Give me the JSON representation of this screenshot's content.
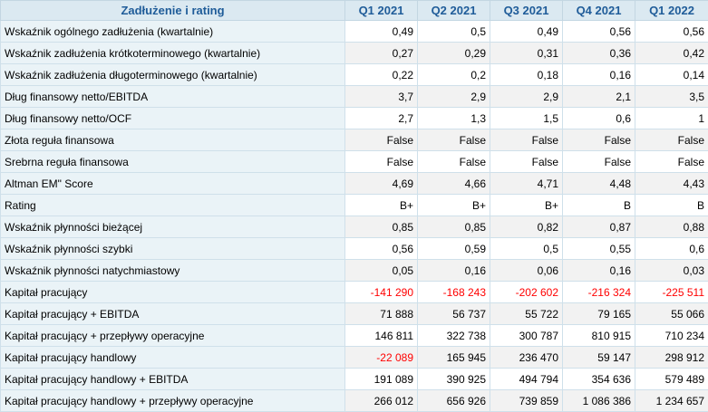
{
  "table": {
    "header": {
      "title": "Zadłużenie i rating",
      "periods": [
        "Q1 2021",
        "Q2 2021",
        "Q3 2021",
        "Q4 2021",
        "Q1 2022"
      ]
    },
    "rows": [
      {
        "label": "Wskaźnik ogólnego zadłużenia (kwartalnie)",
        "values": [
          "0,49",
          "0,5",
          "0,49",
          "0,56",
          "0,56"
        ],
        "negative": [
          false,
          false,
          false,
          false,
          false
        ]
      },
      {
        "label": "Wskaźnik zadłużenia krótkoterminowego (kwartalnie)",
        "values": [
          "0,27",
          "0,29",
          "0,31",
          "0,36",
          "0,42"
        ],
        "negative": [
          false,
          false,
          false,
          false,
          false
        ]
      },
      {
        "label": "Wskaźnik zadłużenia długoterminowego (kwartalnie)",
        "values": [
          "0,22",
          "0,2",
          "0,18",
          "0,16",
          "0,14"
        ],
        "negative": [
          false,
          false,
          false,
          false,
          false
        ]
      },
      {
        "label": "Dług finansowy netto/EBITDA",
        "values": [
          "3,7",
          "2,9",
          "2,9",
          "2,1",
          "3,5"
        ],
        "negative": [
          false,
          false,
          false,
          false,
          false
        ]
      },
      {
        "label": "Dług finansowy netto/OCF",
        "values": [
          "2,7",
          "1,3",
          "1,5",
          "0,6",
          "1"
        ],
        "negative": [
          false,
          false,
          false,
          false,
          false
        ]
      },
      {
        "label": "Złota reguła finansowa",
        "values": [
          "False",
          "False",
          "False",
          "False",
          "False"
        ],
        "negative": [
          false,
          false,
          false,
          false,
          false
        ]
      },
      {
        "label": "Srebrna reguła finansowa",
        "values": [
          "False",
          "False",
          "False",
          "False",
          "False"
        ],
        "negative": [
          false,
          false,
          false,
          false,
          false
        ]
      },
      {
        "label": "Altman EM\" Score",
        "values": [
          "4,69",
          "4,66",
          "4,71",
          "4,48",
          "4,43"
        ],
        "negative": [
          false,
          false,
          false,
          false,
          false
        ]
      },
      {
        "label": "Rating",
        "values": [
          "B+",
          "B+",
          "B+",
          "B",
          "B"
        ],
        "negative": [
          false,
          false,
          false,
          false,
          false
        ]
      },
      {
        "label": "Wskaźnik płynności bieżącej",
        "values": [
          "0,85",
          "0,85",
          "0,82",
          "0,87",
          "0,88"
        ],
        "negative": [
          false,
          false,
          false,
          false,
          false
        ]
      },
      {
        "label": "Wskaźnik płynności szybki",
        "values": [
          "0,56",
          "0,59",
          "0,5",
          "0,55",
          "0,6"
        ],
        "negative": [
          false,
          false,
          false,
          false,
          false
        ]
      },
      {
        "label": "Wskaźnik płynności natychmiastowy",
        "values": [
          "0,05",
          "0,16",
          "0,06",
          "0,16",
          "0,03"
        ],
        "negative": [
          false,
          false,
          false,
          false,
          false
        ]
      },
      {
        "label": "Kapitał pracujący",
        "values": [
          "-141 290",
          "-168 243",
          "-202 602",
          "-216 324",
          "-225 511"
        ],
        "negative": [
          true,
          true,
          true,
          true,
          true
        ]
      },
      {
        "label": "Kapitał pracujący + EBITDA",
        "values": [
          "71 888",
          "56 737",
          "55 722",
          "79 165",
          "55 066"
        ],
        "negative": [
          false,
          false,
          false,
          false,
          false
        ]
      },
      {
        "label": "Kapitał pracujący + przepływy operacyjne",
        "values": [
          "146 811",
          "322 738",
          "300 787",
          "810 915",
          "710 234"
        ],
        "negative": [
          false,
          false,
          false,
          false,
          false
        ]
      },
      {
        "label": "Kapitał pracujący handlowy",
        "values": [
          "-22 089",
          "165 945",
          "236 470",
          "59 147",
          "298 912"
        ],
        "negative": [
          true,
          false,
          false,
          false,
          false
        ]
      },
      {
        "label": "Kapitał pracujący handlowy + EBITDA",
        "values": [
          "191 089",
          "390 925",
          "494 794",
          "354 636",
          "579 489"
        ],
        "negative": [
          false,
          false,
          false,
          false,
          false
        ]
      },
      {
        "label": "Kapitał pracujący handlowy + przepływy operacyjne",
        "values": [
          "266 012",
          "656 926",
          "739 859",
          "1 086 386",
          "1 234 657"
        ],
        "negative": [
          false,
          false,
          false,
          false,
          false
        ]
      }
    ]
  }
}
